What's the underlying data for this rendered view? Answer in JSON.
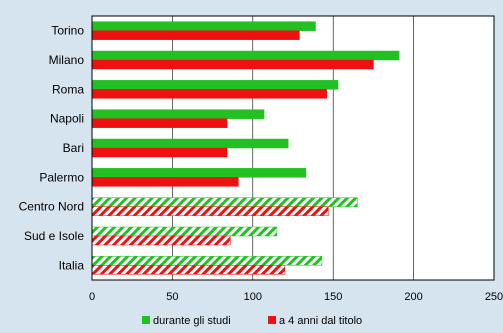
{
  "chart_data": {
    "type": "bar",
    "orientation": "horizontal",
    "categories": [
      "Torino",
      "Milano",
      "Roma",
      "Napoli",
      "Bari",
      "Palermo",
      "Centro Nord",
      "Sud e Isole",
      "Italia"
    ],
    "series": [
      {
        "name": "durante gli studi",
        "color": "#22c022",
        "values": [
          139,
          191,
          153,
          107,
          122,
          133,
          165,
          115,
          143
        ]
      },
      {
        "name": "a 4 anni dal titolo",
        "color": "#ee1111",
        "values": [
          129,
          175,
          146,
          84,
          84,
          91,
          147,
          86,
          120
        ]
      }
    ],
    "hatched_categories": [
      "Centro Nord",
      "Sud e Isole",
      "Italia"
    ],
    "xlim": [
      0,
      250
    ],
    "xticks": [
      0,
      50,
      100,
      150,
      200,
      250
    ],
    "grid": "vertical",
    "legend_position": "bottom"
  }
}
